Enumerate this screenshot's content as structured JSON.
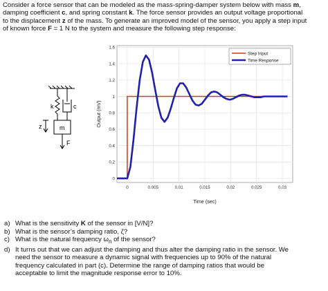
{
  "intro": {
    "lines": [
      [
        "Consider a force sensor that can be modeled as the mass-spring-damper system below with mass ",
        "m",
        ","
      ],
      [
        "damping coefficient ",
        "c",
        ", and spring constant ",
        "k",
        ".  The force sensor provides an output voltage proportional"
      ],
      [
        "to the displacement ",
        "z",
        " of the mass.  To generate an improved model of the sensor, you apply a step input"
      ],
      [
        "of known force ",
        "F",
        " = 1 N to the system and measure the following step response:"
      ]
    ]
  },
  "diagram": {
    "labels": {
      "spring": "k",
      "damper": "c",
      "mass": "m",
      "displacement": "z",
      "force": "F"
    }
  },
  "chart_data": {
    "type": "line",
    "xlabel": "Time (sec)",
    "ylabel": "Output (mV)",
    "xlim": [
      -0.002,
      0.032
    ],
    "ylim": [
      -0.05,
      1.62
    ],
    "x_ticks": [
      "0",
      "0.005",
      "0.01",
      "0.015",
      "0.02",
      "0.025",
      "0.03"
    ],
    "x_tick_values": [
      0,
      0.005,
      0.01,
      0.015,
      0.02,
      0.025,
      0.03
    ],
    "y_ticks": [
      "0",
      "0.2",
      "0.4",
      "0.6",
      "0.8",
      "1",
      "1.2",
      "1.4",
      "1.6"
    ],
    "y_tick_values": [
      0,
      0.2,
      0.4,
      0.6,
      0.8,
      1.0,
      1.2,
      1.4,
      1.6
    ],
    "grid": true,
    "legend_position": "top-right",
    "series": [
      {
        "name": "Step Input",
        "color": "#d9341e",
        "x": [
          -0.002,
          0,
          0,
          0.031
        ],
        "y": [
          0,
          0,
          1,
          1
        ]
      },
      {
        "name": "Time Response",
        "color": "#1f1fb0",
        "x": [
          -0.002,
          0,
          0.0006,
          0.0012,
          0.0018,
          0.0024,
          0.003,
          0.0036,
          0.0042,
          0.0048,
          0.0054,
          0.006,
          0.0066,
          0.0072,
          0.0078,
          0.0084,
          0.009,
          0.0096,
          0.0102,
          0.0108,
          0.0114,
          0.012,
          0.0126,
          0.0132,
          0.0138,
          0.0144,
          0.015,
          0.0156,
          0.0162,
          0.0168,
          0.0174,
          0.018,
          0.0186,
          0.0192,
          0.0198,
          0.0204,
          0.021,
          0.0216,
          0.0222,
          0.0228,
          0.0234,
          0.024,
          0.0246,
          0.0252,
          0.0258,
          0.0264,
          0.027,
          0.0276,
          0.0282,
          0.0288,
          0.0294,
          0.03,
          0.031
        ],
        "y": [
          0,
          0,
          0.14,
          0.47,
          0.86,
          1.2,
          1.42,
          1.5,
          1.45,
          1.29,
          1.08,
          0.88,
          0.74,
          0.69,
          0.74,
          0.85,
          0.98,
          1.1,
          1.16,
          1.16,
          1.11,
          1.03,
          0.95,
          0.9,
          0.89,
          0.91,
          0.96,
          1.01,
          1.05,
          1.06,
          1.05,
          1.02,
          0.99,
          0.97,
          0.96,
          0.97,
          0.99,
          1.01,
          1.02,
          1.02,
          1.01,
          1.0,
          0.99,
          0.99,
          0.99,
          1.0,
          1.0,
          1.0,
          1.0,
          1.0,
          1.0,
          1.0,
          1.0
        ]
      }
    ]
  },
  "questions": [
    {
      "letter": "a)",
      "lines": [
        [
          "What is the sensitivity ",
          "K",
          " of the sensor in [V/N]?"
        ]
      ]
    },
    {
      "letter": "b)",
      "lines": [
        [
          "What is the sensor’s damping ratio, ζ?"
        ]
      ]
    },
    {
      "letter": "c)",
      "lines": [
        [
          "What is the natural frequency ω",
          "n",
          " of the sensor?"
        ]
      ]
    },
    {
      "letter": "d)",
      "lines": [
        [
          "It turns out that we can adjust the damping and thus alter the damping ratio in the sensor.  We"
        ],
        [
          "need the sensor to measure a dynamic signal with frequencies up to 90% of the natural"
        ],
        [
          "frequency calculated in part (c).  Determine the range of damping ratios that would be"
        ],
        [
          "acceptable to limit the magnitude response error to 10%."
        ]
      ]
    }
  ]
}
